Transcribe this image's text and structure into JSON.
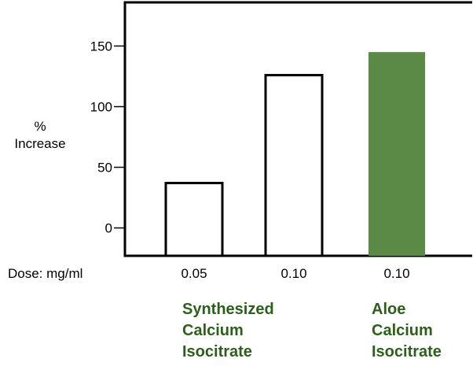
{
  "chart_data": {
    "type": "bar",
    "ylabel": [
      "%",
      "Increase"
    ],
    "xlabel": "Dose: mg/ml",
    "categories": [
      "0.05",
      "0.10",
      "0.10"
    ],
    "values": [
      37,
      126,
      145
    ],
    "bar_colors": [
      "#ffffff",
      "#ffffff",
      "#5a8a45"
    ],
    "bar_outline": "#000000",
    "ylim": [
      -23,
      186
    ],
    "yticks": [
      0,
      50,
      100,
      150
    ],
    "ytick_labels": [
      "0",
      "50",
      "100",
      "150"
    ],
    "grid": false,
    "groups": [
      {
        "lines": [
          "Synthesized",
          "Calcium",
          "Isocitrate"
        ],
        "categories": [
          0,
          1
        ]
      },
      {
        "lines": [
          "Aloe",
          "Calcium",
          "Isocitrate"
        ],
        "categories": [
          2
        ]
      }
    ],
    "group_label_color": "#2e5e1e"
  }
}
